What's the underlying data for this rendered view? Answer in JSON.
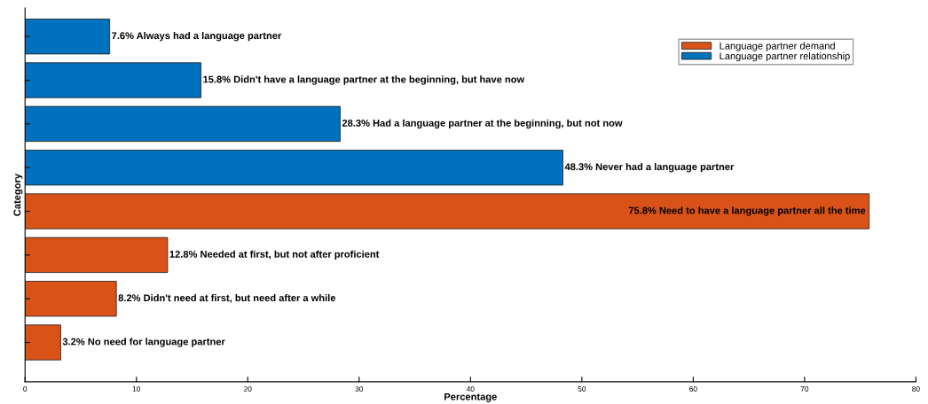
{
  "chart_data": {
    "type": "bar",
    "orientation": "horizontal",
    "xlabel": "Percentage",
    "ylabel": "Category",
    "categories": [
      null,
      null,
      null,
      null,
      null,
      null,
      null,
      null
    ],
    "series": [
      {
        "name": "Language partner demand",
        "color": "#d95319",
        "values": [
          null,
          null,
          null,
          null,
          75.8,
          12.8,
          8.2,
          3.2
        ],
        "value_labels": [
          null,
          null,
          null,
          null,
          "75.8% Need to have a language partner all the time",
          "12.8% Needed at first, but not after proficient",
          "8.2% Didn't need at first, but need after a while",
          "3.2% No need for language partner"
        ]
      },
      {
        "name": "Language partner relationship",
        "color": "#0072bd",
        "values": [
          7.6,
          15.8,
          28.3,
          48.3,
          null,
          null,
          null,
          null
        ],
        "value_labels": [
          "7.6% Always had a language partner",
          "15.8% Didn't have a language partner at the beginning, but have now",
          "28.3% Had a language partner at the beginning, but not now",
          "48.3% Never had a language partner",
          null,
          null,
          null,
          null
        ]
      }
    ],
    "xlim": [
      0,
      80
    ],
    "xticks": [
      0,
      10,
      20,
      30,
      40,
      50,
      60,
      70,
      80
    ],
    "tick_labels": "x",
    "grid": false,
    "legend": "top right"
  }
}
